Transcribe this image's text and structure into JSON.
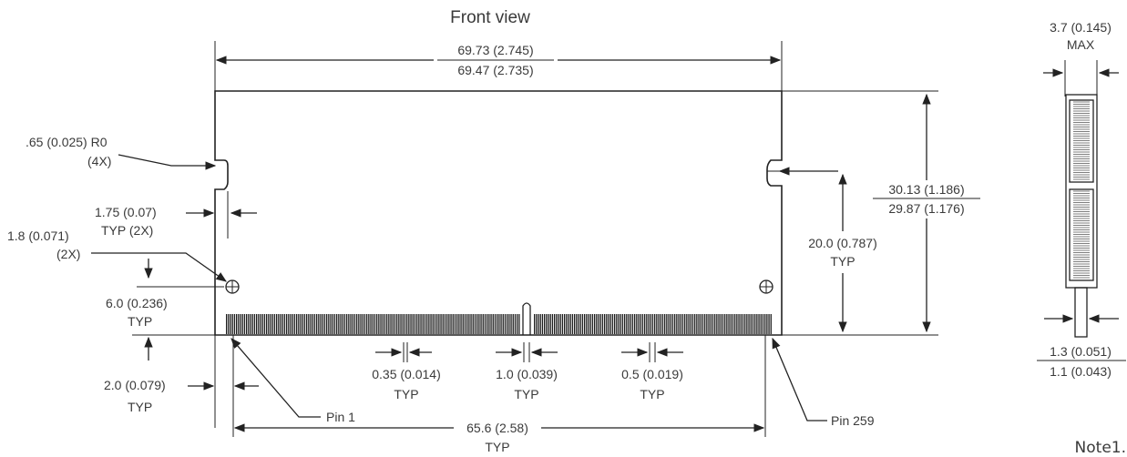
{
  "title": "Front view",
  "note": "Note1.",
  "labels": {
    "overall_width_max": "69.73 (2.745)",
    "overall_width_min": "69.47 (2.735)",
    "corner_radius": ".65 (0.025) R0",
    "corner_radius_qty": "(4X)",
    "notch_offset": "1.75 (0.07)",
    "notch_offset_typ": "TYP (2X)",
    "hole_dia": "1.8 (0.071)",
    "hole_qty": "(2X)",
    "hole_height": "6.0 (0.236)",
    "hole_height_typ": "TYP",
    "edge_offset": "2.0 (0.079)",
    "edge_offset_typ": "TYP",
    "pin1": "Pin 1",
    "pin259": "Pin 259",
    "pin_width": "0.35 (0.014)",
    "pin_width_typ": "TYP",
    "key_width": "1.0 (0.039)",
    "key_width_typ": "TYP",
    "pin_pitch": "0.5 (0.019)",
    "pin_pitch_typ": "TYP",
    "pin_span": "65.6 (2.58)",
    "pin_span_typ": "TYP",
    "notch_height": "20.0 (0.787)",
    "notch_height_typ": "TYP",
    "height_max": "30.13 (1.186)",
    "height_min": "29.87 (1.176)",
    "thickness": "3.7 (0.145)",
    "thickness_max": "MAX",
    "pcb_max": "1.3 (0.051)",
    "pcb_min": "1.1 (0.043)"
  }
}
